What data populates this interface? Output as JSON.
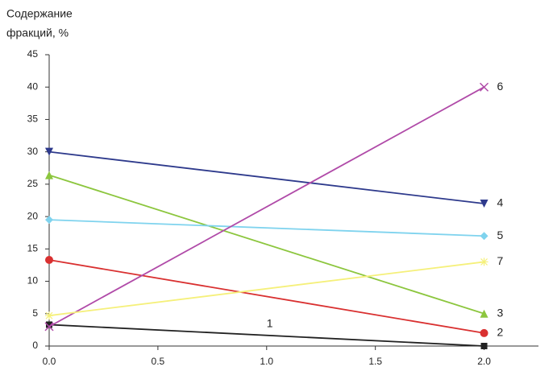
{
  "chart_data": {
    "type": "line",
    "y_label": [
      "Содержание",
      "фракций, %"
    ],
    "x": [
      0,
      2
    ],
    "xlim": [
      0,
      2.25
    ],
    "xticks": [
      {
        "value": 0,
        "label": "0.0"
      },
      {
        "value": 0.5,
        "label": "0.5"
      },
      {
        "value": 1,
        "label": "1.0"
      },
      {
        "value": 1.5,
        "label": "1.5"
      },
      {
        "value": 2,
        "label": "2.0"
      }
    ],
    "ylim": [
      0,
      45
    ],
    "yticks": [
      0,
      5,
      10,
      15,
      20,
      25,
      30,
      35,
      40,
      45
    ],
    "series": [
      {
        "name": "1",
        "color": "#222222",
        "marker": "square",
        "values": [
          3.3,
          0
        ]
      },
      {
        "name": "2",
        "color": "#d93030",
        "marker": "circle",
        "values": [
          13.3,
          2
        ]
      },
      {
        "name": "3",
        "color": "#8cc63e",
        "marker": "triangle-up",
        "values": [
          26.4,
          5
        ]
      },
      {
        "name": "4",
        "color": "#2e3a8c",
        "marker": "triangle-down",
        "values": [
          30,
          22
        ]
      },
      {
        "name": "5",
        "color": "#7fd3ee",
        "marker": "diamond",
        "values": [
          19.5,
          17
        ]
      },
      {
        "name": "6",
        "color": "#b04aa8",
        "marker": "x",
        "values": [
          3,
          40
        ]
      },
      {
        "name": "7",
        "color": "#f5f07a",
        "marker": "star",
        "values": [
          4.7,
          13
        ]
      }
    ]
  }
}
